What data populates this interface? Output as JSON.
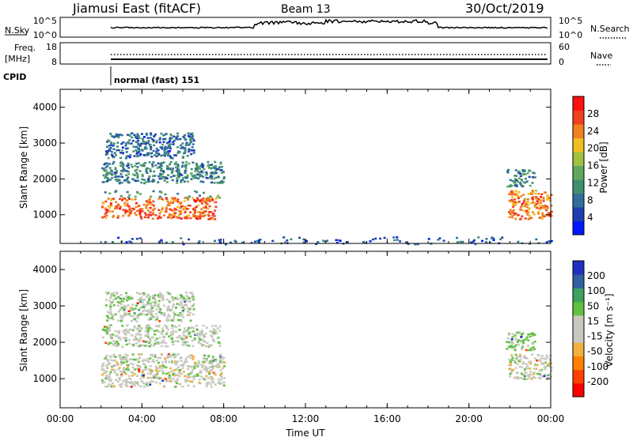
{
  "header": {
    "station": "Jiamusi East (fitACF)",
    "beam": "Beam 13",
    "date": "30/Oct/2019"
  },
  "panels": {
    "nsky": {
      "left_label": "N.Sky",
      "left_ticks": [
        "10^5",
        "10^0"
      ],
      "right_ticks": [
        "10^5",
        "10^0"
      ],
      "right_label": "N.Search"
    },
    "freq": {
      "left_label_1": "Freq.",
      "left_label_2": "[MHz]",
      "left_ticks": [
        "18",
        "8"
      ],
      "right_ticks": [
        "60",
        "0"
      ],
      "right_label": "Nave"
    },
    "cpid": {
      "label": "CPID",
      "mode": "normal (fast) 151"
    }
  },
  "colors": {
    "power_scale": [
      "#0018ff",
      "#1f3fb0",
      "#2f6f9a",
      "#3f8f6f",
      "#5fa85f",
      "#a0c040",
      "#f0c020",
      "#f08020",
      "#f04020",
      "#ff1010"
    ],
    "velocity_scale": [
      "#ff0000",
      "#ff4000",
      "#ff8000",
      "#f0b040",
      "#c8c8c0",
      "#c8c8c0",
      "#60c040",
      "#40a060",
      "#3060a0",
      "#2030c0"
    ]
  },
  "chart_data": [
    {
      "type": "heatmap",
      "name": "power",
      "ylabel": "Slant Range [km]",
      "yticks": [
        "1000",
        "2000",
        "3000",
        "4000"
      ],
      "ylim": [
        200,
        4500
      ],
      "xlim_hours": [
        0,
        24
      ],
      "colorbar": {
        "label": "Power [dB]",
        "ticks": [
          "4",
          "8",
          "12",
          "16",
          "20",
          "24",
          "28"
        ],
        "range": [
          0,
          32
        ]
      },
      "regions": [
        {
          "t0": 2.0,
          "t1": 7.6,
          "r0": 900,
          "r1": 1500,
          "level": 26
        },
        {
          "t0": 2.0,
          "t1": 7.9,
          "r0": 1500,
          "r1": 1700,
          "level": 12
        },
        {
          "t0": 2.0,
          "t1": 8.0,
          "r0": 1900,
          "r1": 2500,
          "level": 10
        },
        {
          "t0": 2.2,
          "t1": 6.5,
          "r0": 2600,
          "r1": 3300,
          "level": 8
        },
        {
          "t0": 21.9,
          "t1": 24.0,
          "r0": 900,
          "r1": 1700,
          "level": 24
        },
        {
          "t0": 21.8,
          "t1": 23.2,
          "r0": 1800,
          "r1": 2300,
          "level": 10
        },
        {
          "t0": 2.0,
          "t1": 24.0,
          "r0": 200,
          "r1": 400,
          "level": 6
        }
      ]
    },
    {
      "type": "heatmap",
      "name": "velocity",
      "ylabel": "Slant Range [km]",
      "yticks": [
        "1000",
        "2000",
        "3000",
        "4000"
      ],
      "ylim": [
        200,
        4500
      ],
      "xlim_hours": [
        0,
        24
      ],
      "xticks": [
        "00:00",
        "04:00",
        "08:00",
        "12:00",
        "16:00",
        "20:00",
        "00:00"
      ],
      "xlabel": "Time UT",
      "colorbar": {
        "label": "Velocity [m s⁻¹]",
        "ticks": [
          "-200",
          "-100",
          "-50",
          "-15",
          "15",
          "50",
          "100",
          "200"
        ]
      },
      "regions": [
        {
          "t0": 2.0,
          "t1": 8.0,
          "r0": 800,
          "r1": 1700,
          "level": 0
        },
        {
          "t0": 2.0,
          "t1": 7.8,
          "r0": 1900,
          "r1": 2500,
          "level": 5
        },
        {
          "t0": 2.2,
          "t1": 6.5,
          "r0": 2600,
          "r1": 3400,
          "level": 10
        },
        {
          "t0": 21.9,
          "t1": 24.0,
          "r0": 1000,
          "r1": 1700,
          "level": 0
        },
        {
          "t0": 21.8,
          "t1": 23.2,
          "r0": 1800,
          "r1": 2300,
          "level": 20
        }
      ]
    }
  ]
}
